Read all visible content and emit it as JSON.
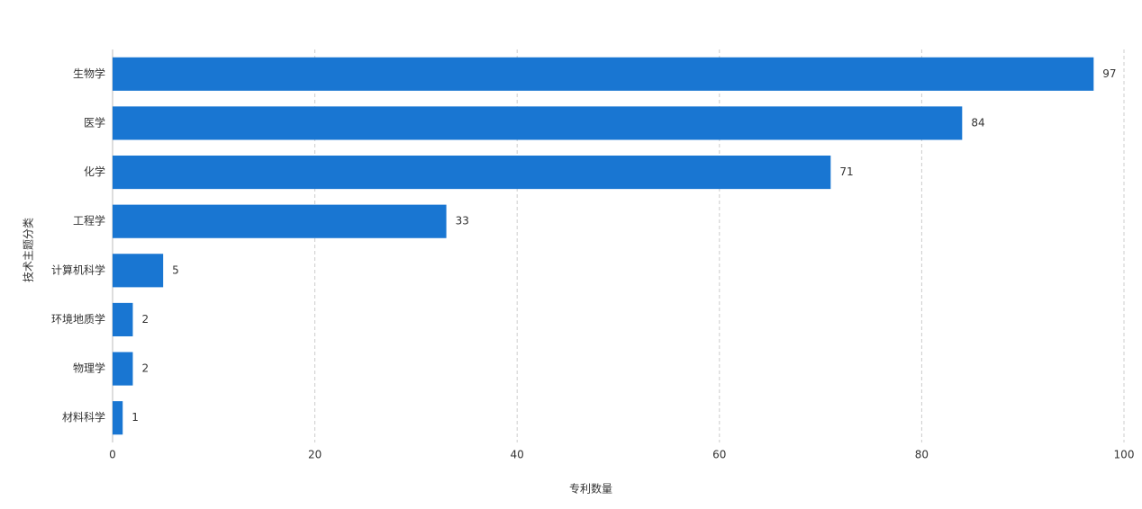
{
  "chart_data": {
    "type": "bar",
    "orientation": "horizontal",
    "x_label": "专利数量",
    "y_label": "技术主题分类",
    "categories": [
      "生物学",
      "医学",
      "化学",
      "工程学",
      "计算机科学",
      "环境地质学",
      "物理学",
      "材料科学"
    ],
    "values": [
      97,
      84,
      71,
      33,
      5,
      2,
      2,
      1
    ],
    "color": "#1976d2",
    "xlim": [
      0,
      100
    ],
    "xticks": [
      0,
      20,
      40,
      60,
      80,
      100
    ],
    "grid": true
  }
}
